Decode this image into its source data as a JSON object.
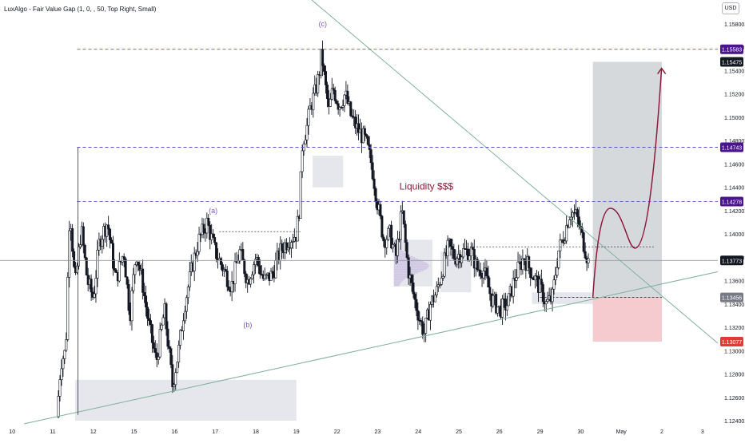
{
  "indicator": {
    "label": "LuxAlgo - Fair Value Gap (1, 0, , 50, Top Right, Small)"
  },
  "currency": "USD",
  "chart_data": {
    "type": "candlestick",
    "title": "",
    "ylim": [
      1.1235,
      1.1595
    ],
    "y_ticks": [
      1.158,
      1.156,
      1.154,
      1.152,
      1.15,
      1.148,
      1.146,
      1.144,
      1.142,
      1.14,
      1.138,
      1.136,
      1.134,
      1.132,
      1.13,
      1.128,
      1.126,
      1.124
    ],
    "x_labels": [
      "10",
      "11",
      "12",
      "15",
      "16",
      "17",
      "18",
      "19",
      "22",
      "23",
      "24",
      "25",
      "26",
      "29",
      "30",
      "May",
      "2",
      "3"
    ],
    "x_ticks": [
      {
        "label": "10",
        "day": -1
      },
      {
        "label": "11",
        "day": 0
      },
      {
        "label": "12",
        "day": 1
      },
      {
        "label": "15",
        "day": 2
      },
      {
        "label": "16",
        "day": 3
      },
      {
        "label": "17",
        "day": 4
      },
      {
        "label": "18",
        "day": 5
      },
      {
        "label": "19",
        "day": 6
      },
      {
        "label": "22",
        "day": 7
      },
      {
        "label": "23",
        "day": 8
      },
      {
        "label": "24",
        "day": 9
      },
      {
        "label": "25",
        "day": 10
      },
      {
        "label": "26",
        "day": 11
      },
      {
        "label": "29",
        "day": 12
      },
      {
        "label": "30",
        "day": 13
      },
      {
        "label": "May",
        "day": 14
      },
      {
        "label": "2",
        "day": 15
      },
      {
        "label": "3",
        "day": 16
      }
    ],
    "ohlc_anchors": [
      [
        0.1,
        1.1243
      ],
      [
        0.2,
        1.129
      ],
      [
        0.32,
        1.13
      ],
      [
        0.42,
        1.1425
      ],
      [
        0.55,
        1.1355
      ],
      [
        0.7,
        1.1405
      ],
      [
        0.85,
        1.136
      ],
      [
        1.0,
        1.1345
      ],
      [
        1.15,
        1.1395
      ],
      [
        1.35,
        1.141
      ],
      [
        1.55,
        1.136
      ],
      [
        1.75,
        1.1385
      ],
      [
        1.9,
        1.133
      ],
      [
        2.05,
        1.1385
      ],
      [
        2.2,
        1.136
      ],
      [
        2.35,
        1.1325
      ],
      [
        2.55,
        1.129
      ],
      [
        2.75,
        1.1335
      ],
      [
        2.95,
        1.127
      ],
      [
        3.1,
        1.13
      ],
      [
        3.25,
        1.134
      ],
      [
        3.45,
        1.1375
      ],
      [
        3.6,
        1.1395
      ],
      [
        3.8,
        1.141
      ],
      [
        4.0,
        1.1385
      ],
      [
        4.2,
        1.137
      ],
      [
        4.4,
        1.1355
      ],
      [
        4.6,
        1.1385
      ],
      [
        4.8,
        1.136
      ],
      [
        5.0,
        1.138
      ],
      [
        5.2,
        1.136
      ],
      [
        5.4,
        1.1365
      ],
      [
        5.6,
        1.1385
      ],
      [
        5.8,
        1.1395
      ],
      [
        6.0,
        1.14
      ],
      [
        6.08,
        1.1425
      ],
      [
        6.15,
        1.148
      ],
      [
        6.25,
        1.149
      ],
      [
        6.35,
        1.151
      ],
      [
        6.45,
        1.152
      ],
      [
        6.55,
        1.1535
      ],
      [
        6.62,
        1.1555
      ],
      [
        6.7,
        1.153
      ],
      [
        6.8,
        1.1505
      ],
      [
        6.9,
        1.1525
      ],
      [
        7.05,
        1.151
      ],
      [
        7.2,
        1.152
      ],
      [
        7.35,
        1.15
      ],
      [
        7.5,
        1.149
      ],
      [
        7.7,
        1.148
      ],
      [
        7.85,
        1.146
      ],
      [
        8.0,
        1.1425
      ],
      [
        8.15,
        1.1395
      ],
      [
        8.3,
        1.14
      ],
      [
        8.45,
        1.138
      ],
      [
        8.6,
        1.142
      ],
      [
        8.75,
        1.137
      ],
      [
        8.9,
        1.1345
      ],
      [
        9.05,
        1.1325
      ],
      [
        9.15,
        1.1315
      ],
      [
        9.3,
        1.134
      ],
      [
        9.45,
        1.135
      ],
      [
        9.6,
        1.137
      ],
      [
        9.75,
        1.139
      ],
      [
        9.9,
        1.138
      ],
      [
        10.1,
        1.1385
      ],
      [
        10.3,
        1.1385
      ],
      [
        10.45,
        1.137
      ],
      [
        10.6,
        1.137
      ],
      [
        10.8,
        1.1345
      ],
      [
        11.0,
        1.1335
      ],
      [
        11.2,
        1.134
      ],
      [
        11.4,
        1.1365
      ],
      [
        11.6,
        1.138
      ],
      [
        11.75,
        1.137
      ],
      [
        11.9,
        1.136
      ],
      [
        12.05,
        1.135
      ],
      [
        12.15,
        1.134
      ],
      [
        12.3,
        1.1345
      ],
      [
        12.45,
        1.1385
      ],
      [
        12.6,
        1.14
      ],
      [
        12.75,
        1.142
      ],
      [
        12.9,
        1.1415
      ],
      [
        13.05,
        1.1395
      ],
      [
        13.2,
        1.1375
      ]
    ],
    "levels": [
      {
        "label": "1.15583",
        "value": 1.15583,
        "style": "dashed",
        "color": "#5b52d3",
        "tag_bg": "#4a148c"
      },
      {
        "label": "1.15475",
        "value": 1.15475,
        "style": "none",
        "color": "#131722",
        "tag_bg": "#131722"
      },
      {
        "label": "1.14743",
        "value": 1.14743,
        "style": "dashed",
        "color": "#5b52d3",
        "tag_bg": "#4a148c"
      },
      {
        "label": "1.14278",
        "value": 1.14278,
        "style": "dashed",
        "color": "#5b52d3",
        "tag_bg": "#4a148c"
      },
      {
        "label": "1.13773",
        "value": 1.13773,
        "style": "solid",
        "color": "#131722",
        "tag_bg": "#131722"
      },
      {
        "label": "1.13456",
        "value": 1.13456,
        "style": "none",
        "color": "#787b86",
        "tag_bg": "#787b86"
      },
      {
        "label": "1.13077",
        "value": 1.13077,
        "style": "none",
        "color": "#e53935",
        "tag_bg": "#e53935"
      }
    ],
    "annotations": [
      {
        "text": "(c)",
        "day": 6.65,
        "price": 1.1578,
        "color": "#7e57c2"
      },
      {
        "text": "(a)",
        "day": 3.95,
        "price": 1.1418,
        "color": "#7e57c2"
      },
      {
        "text": "(b)",
        "day": 4.8,
        "price": 1.132,
        "color": "#7e57c2"
      },
      {
        "text": "Liquidity $$$",
        "day": 9.2,
        "price": 1.1438,
        "color": "#8e1b3c"
      }
    ],
    "long_position": {
      "day_start": 13.3,
      "day_end": 15.0,
      "entry": 1.13456,
      "target": 1.15475,
      "stop": 1.13077,
      "profit_color": "#c8ccd0",
      "loss_color": "#f4c2c8"
    },
    "projection_color": "#8e1b3c",
    "trendline_color": "#7fb09a",
    "grid": false,
    "legend": "none"
  }
}
